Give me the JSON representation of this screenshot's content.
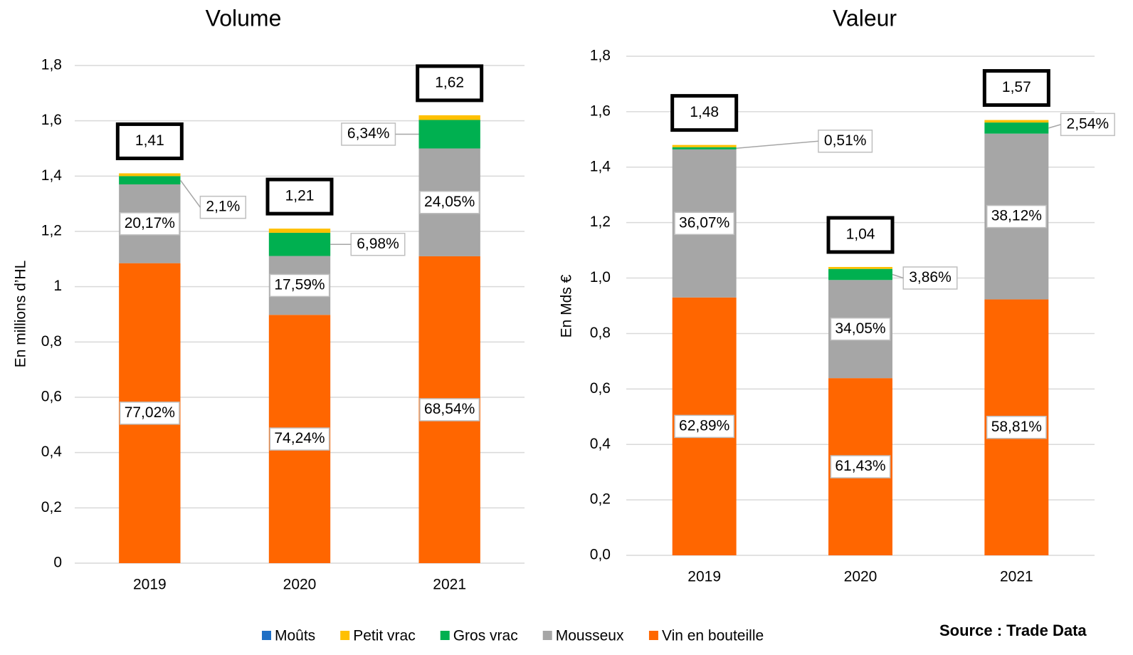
{
  "chart_data": [
    {
      "type": "bar",
      "stacked": true,
      "title": "Volume",
      "y_label": "En millions d’HL",
      "categories": [
        "2019",
        "2020",
        "2021"
      ],
      "ylim": [
        0,
        1.8
      ],
      "yticks": [
        0,
        {
          "value": 0.2,
          "label": "0,2"
        },
        {
          "value": 0.4,
          "label": "0,4"
        },
        {
          "value": 0.6,
          "label": "0,6"
        },
        {
          "value": 0.8,
          "label": "0,8"
        },
        1,
        {
          "value": 1.2,
          "label": "1,2"
        },
        {
          "value": 1.4,
          "label": "1,4"
        },
        {
          "value": 1.6,
          "label": "1,6"
        },
        {
          "value": 1.8,
          "label": "1,8"
        }
      ],
      "grid": true,
      "legend": "bottom",
      "series": [
        {
          "name": "Vin en bouteille",
          "color": "#ff6600",
          "values": [
            1.085,
            0.898,
            1.11
          ],
          "share_labels": [
            "77,02%",
            "74,24%",
            "68,54%"
          ]
        },
        {
          "name": "Mousseux",
          "color": "#a6a6a6",
          "values": [
            0.285,
            0.213,
            0.39
          ],
          "share_labels": [
            "20,17%",
            "17,59%",
            "24,05%"
          ]
        },
        {
          "name": "Gros vrac",
          "color": "#00b050",
          "values": [
            0.03,
            0.084,
            0.103
          ],
          "share_labels": [
            "2,1%",
            "6,98%",
            "6,34%"
          ]
        },
        {
          "name": "Petit vrac",
          "color": "#ffc000",
          "values": [
            0.01,
            0.015,
            0.017
          ],
          "share_labels": [
            null,
            null,
            null
          ]
        },
        {
          "name": "Moûts",
          "color": "#1f6fc5",
          "values": [
            0,
            0,
            0
          ],
          "share_labels": [
            null,
            null,
            null
          ]
        }
      ],
      "totals": [
        {
          "value": 1.41,
          "label": "1,41"
        },
        {
          "value": 1.21,
          "label": "1,21"
        },
        {
          "value": 1.62,
          "label": "1,62"
        }
      ]
    },
    {
      "type": "bar",
      "stacked": true,
      "title": "Valeur",
      "y_label": "En Mds €",
      "categories": [
        "2019",
        "2020",
        "2021"
      ],
      "ylim": [
        0,
        1.8
      ],
      "yticks": [
        {
          "value": 0,
          "label": "0,0"
        },
        {
          "value": 0.2,
          "label": "0,2"
        },
        {
          "value": 0.4,
          "label": "0,4"
        },
        {
          "value": 0.6,
          "label": "0,6"
        },
        {
          "value": 0.8,
          "label": "0,8"
        },
        {
          "value": 1,
          "label": "1,0"
        },
        {
          "value": 1.2,
          "label": "1,2"
        },
        {
          "value": 1.4,
          "label": "1,4"
        },
        {
          "value": 1.6,
          "label": "1,6"
        },
        {
          "value": 1.8,
          "label": "1,8"
        }
      ],
      "grid": true,
      "series": [
        {
          "name": "Vin en bouteille",
          "color": "#ff6600",
          "values": [
            0.93,
            0.639,
            0.923
          ],
          "share_labels": [
            "62,89%",
            "61,43%",
            "58,81%"
          ]
        },
        {
          "name": "Mousseux",
          "color": "#a6a6a6",
          "values": [
            0.534,
            0.354,
            0.598
          ],
          "share_labels": [
            "36,07%",
            "34,05%",
            "38,12%"
          ]
        },
        {
          "name": "Gros vrac",
          "color": "#00b050",
          "values": [
            0.008,
            0.04,
            0.04
          ],
          "share_labels": [
            "0,51%",
            "3,86%",
            "2,54%"
          ]
        },
        {
          "name": "Petit vrac",
          "color": "#ffc000",
          "values": [
            0.008,
            0.007,
            0.009
          ],
          "share_labels": [
            null,
            null,
            null
          ]
        },
        {
          "name": "Moûts",
          "color": "#1f6fc5",
          "values": [
            0,
            0,
            0
          ],
          "share_labels": [
            null,
            null,
            null
          ]
        }
      ],
      "totals": [
        {
          "value": 1.48,
          "label": "1,48"
        },
        {
          "value": 1.04,
          "label": "1,04"
        },
        {
          "value": 1.57,
          "label": "1,57"
        }
      ]
    }
  ],
  "source": "Source : Trade Data"
}
